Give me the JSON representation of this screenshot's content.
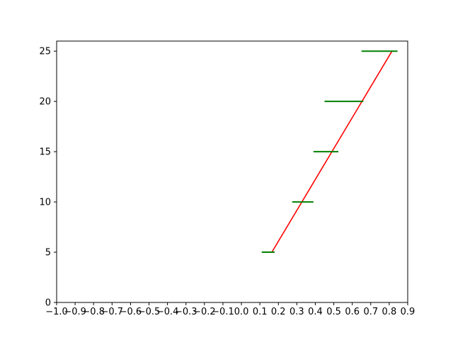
{
  "chart_data": {
    "type": "line",
    "title": "",
    "xlabel": "",
    "ylabel": "",
    "xlim": [
      -1.0,
      0.9
    ],
    "ylim": [
      0,
      26
    ],
    "grid": false,
    "x_ticks": [
      "−1.0",
      "−0.9",
      "−0.8",
      "−0.7",
      "−0.6",
      "−0.5",
      "−0.4",
      "−0.3",
      "−0.2",
      "−0.1",
      "0.0",
      "0.1",
      "0.2",
      "0.3",
      "0.4",
      "0.5",
      "0.6",
      "0.7",
      "0.8",
      "0.9"
    ],
    "x_tick_values": [
      -1.0,
      -0.9,
      -0.8,
      -0.7,
      -0.6,
      -0.5,
      -0.4,
      -0.3,
      -0.2,
      -0.1,
      0.0,
      0.1,
      0.2,
      0.3,
      0.4,
      0.5,
      0.6,
      0.7,
      0.8,
      0.9
    ],
    "y_ticks": [
      "0",
      "5",
      "10",
      "15",
      "20",
      "25"
    ],
    "y_tick_values": [
      0,
      5,
      10,
      15,
      20,
      25
    ],
    "line_series": {
      "color": "#ff0000",
      "x": [
        0.165,
        0.815
      ],
      "y": [
        5,
        25
      ]
    },
    "interval_series": {
      "color": "#008000",
      "segments": [
        {
          "y": 5,
          "x_start": 0.11,
          "x_end": 0.18
        },
        {
          "y": 10,
          "x_start": 0.275,
          "x_end": 0.39
        },
        {
          "y": 15,
          "x_start": 0.39,
          "x_end": 0.525
        },
        {
          "y": 20,
          "x_start": 0.45,
          "x_end": 0.66
        },
        {
          "y": 25,
          "x_start": 0.65,
          "x_end": 0.845
        }
      ]
    }
  }
}
